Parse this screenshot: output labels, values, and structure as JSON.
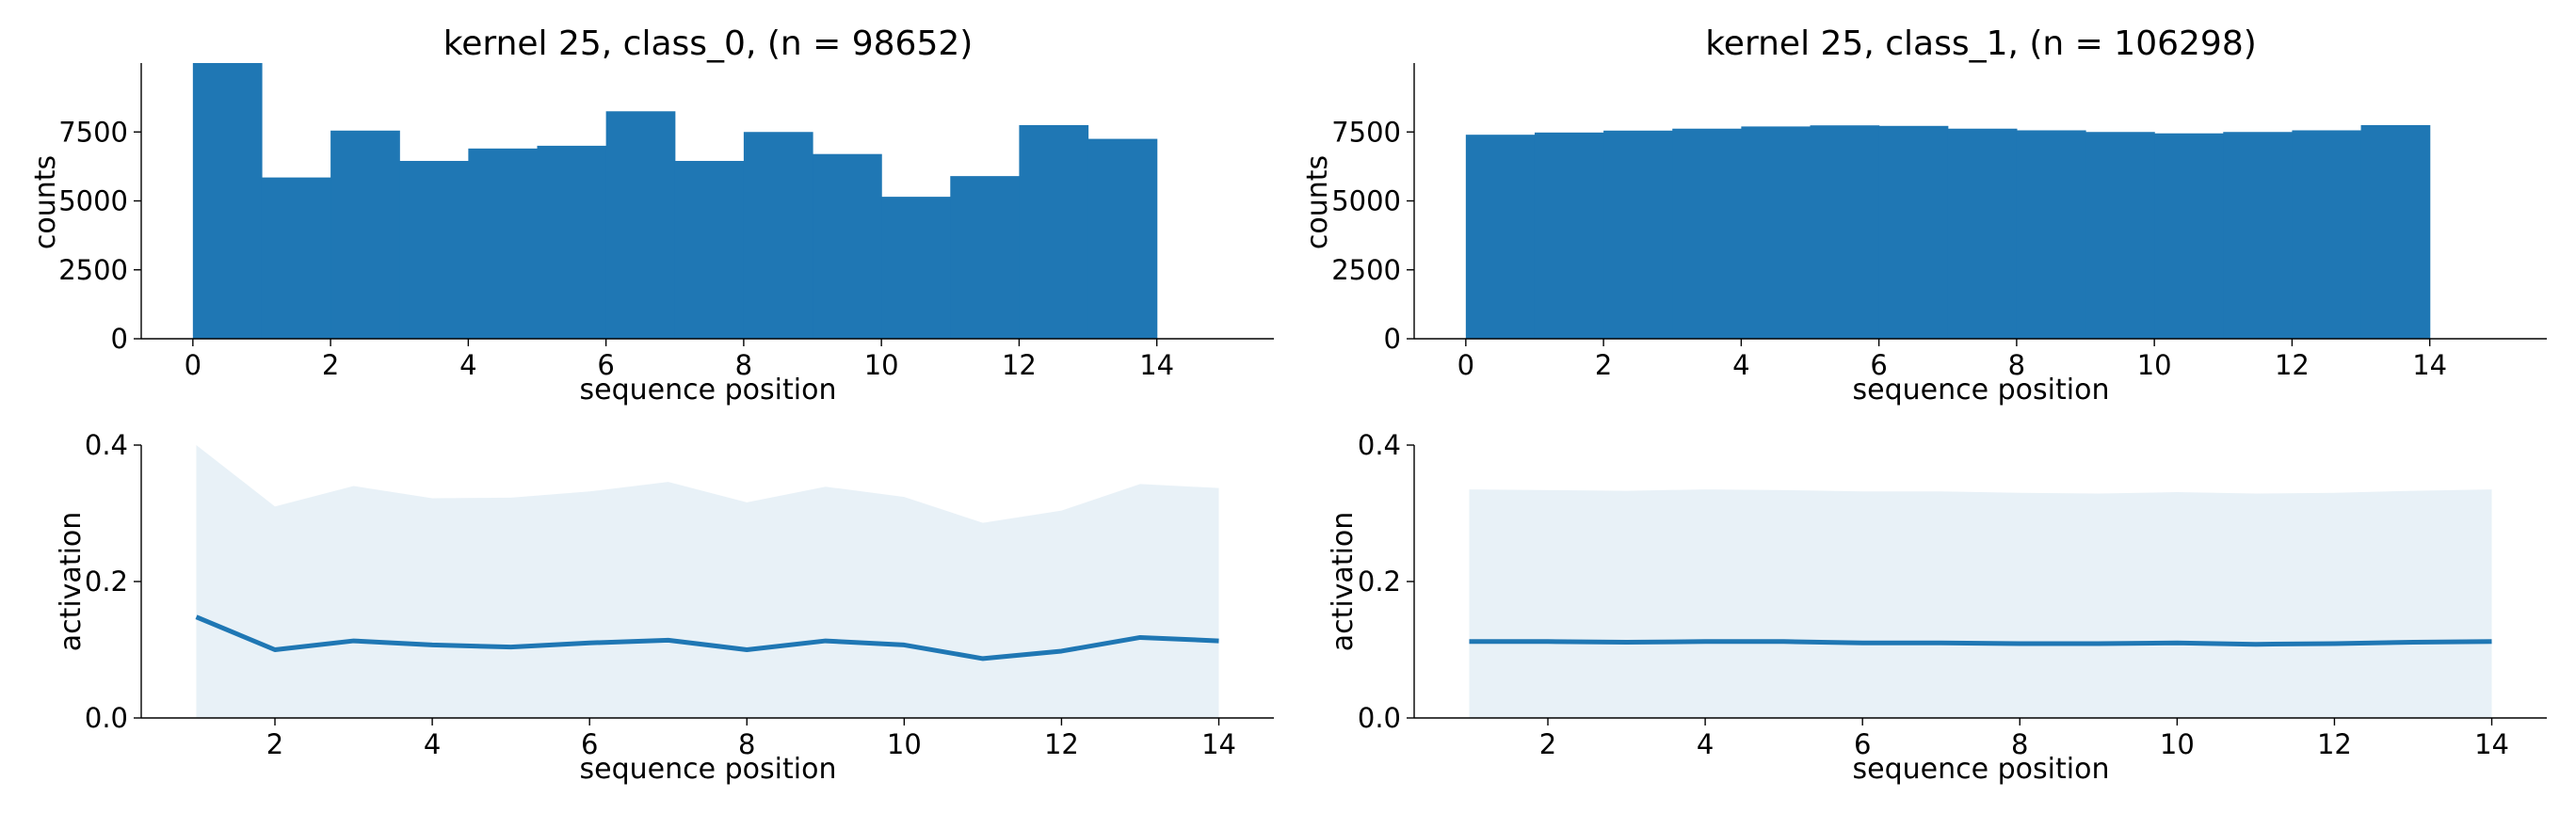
{
  "colors": {
    "bar": "#1f77b4",
    "line": "#1f77b4",
    "band": "#1f77b4",
    "band_opacity": 0.1
  },
  "chart_data": [
    {
      "type": "bar",
      "title": "kernel 25, class_0, (n = 98652)",
      "xlabel": "sequence position",
      "ylabel": "counts",
      "bin_edges": [
        0,
        1,
        2,
        3,
        4,
        5,
        6,
        7,
        8,
        9,
        10,
        11,
        12,
        13,
        14
      ],
      "values": [
        10000,
        5850,
        7550,
        6450,
        6900,
        7000,
        8250,
        6450,
        7500,
        6700,
        5150,
        5900,
        7750,
        7250
      ],
      "xlim": [
        -0.75,
        15.7
      ],
      "ylim": [
        0,
        10000
      ],
      "xticks": [
        0,
        2,
        4,
        6,
        8,
        10,
        12,
        14
      ],
      "yticks": [
        0,
        2500,
        5000,
        7500
      ]
    },
    {
      "type": "bar",
      "title": "kernel 25, class_1, (n = 106298)",
      "xlabel": "sequence position",
      "ylabel": "counts",
      "bin_edges": [
        0,
        1,
        2,
        3,
        4,
        5,
        6,
        7,
        8,
        9,
        10,
        11,
        12,
        13,
        14
      ],
      "values": [
        7400,
        7480,
        7550,
        7620,
        7700,
        7740,
        7720,
        7620,
        7560,
        7500,
        7450,
        7500,
        7560,
        7750
      ],
      "xlim": [
        -0.75,
        15.7
      ],
      "ylim": [
        0,
        10000
      ],
      "xticks": [
        0,
        2,
        4,
        6,
        8,
        10,
        12,
        14
      ],
      "yticks": [
        0,
        2500,
        5000,
        7500
      ]
    },
    {
      "type": "line",
      "xlabel": "sequence position",
      "ylabel": "activation",
      "x": [
        1,
        2,
        3,
        4,
        5,
        6,
        7,
        8,
        9,
        10,
        11,
        12,
        13,
        14
      ],
      "mean": [
        0.148,
        0.1,
        0.113,
        0.107,
        0.104,
        0.11,
        0.114,
        0.1,
        0.113,
        0.107,
        0.087,
        0.098,
        0.118,
        0.113
      ],
      "upper": [
        0.4,
        0.31,
        0.34,
        0.322,
        0.323,
        0.332,
        0.346,
        0.316,
        0.339,
        0.324,
        0.286,
        0.304,
        0.343,
        0.337
      ],
      "lower": [
        0,
        0,
        0,
        0,
        0,
        0,
        0,
        0,
        0,
        0,
        0,
        0,
        0,
        0
      ],
      "xlim": [
        0.3,
        14.7
      ],
      "ylim": [
        0,
        0.4
      ],
      "xticks": [
        2,
        4,
        6,
        8,
        10,
        12,
        14
      ],
      "yticks": [
        0.0,
        0.2,
        0.4
      ],
      "ytick_labels": [
        "0.0",
        "0.2",
        "0.4"
      ]
    },
    {
      "type": "line",
      "xlabel": "sequence position",
      "ylabel": "activation",
      "x": [
        1,
        2,
        3,
        4,
        5,
        6,
        7,
        8,
        9,
        10,
        11,
        12,
        13,
        14
      ],
      "mean": [
        0.112,
        0.112,
        0.111,
        0.112,
        0.112,
        0.11,
        0.11,
        0.109,
        0.109,
        0.11,
        0.108,
        0.109,
        0.111,
        0.112
      ],
      "upper": [
        0.335,
        0.334,
        0.333,
        0.335,
        0.334,
        0.332,
        0.332,
        0.33,
        0.329,
        0.331,
        0.329,
        0.33,
        0.333,
        0.335
      ],
      "lower": [
        0,
        0,
        0,
        0,
        0,
        0,
        0,
        0,
        0,
        0,
        0,
        0,
        0,
        0
      ],
      "xlim": [
        0.3,
        14.7
      ],
      "ylim": [
        0,
        0.4
      ],
      "xticks": [
        2,
        4,
        6,
        8,
        10,
        12,
        14
      ],
      "yticks": [
        0.0,
        0.2,
        0.4
      ],
      "ytick_labels": [
        "0.0",
        "0.2",
        "0.4"
      ]
    }
  ]
}
